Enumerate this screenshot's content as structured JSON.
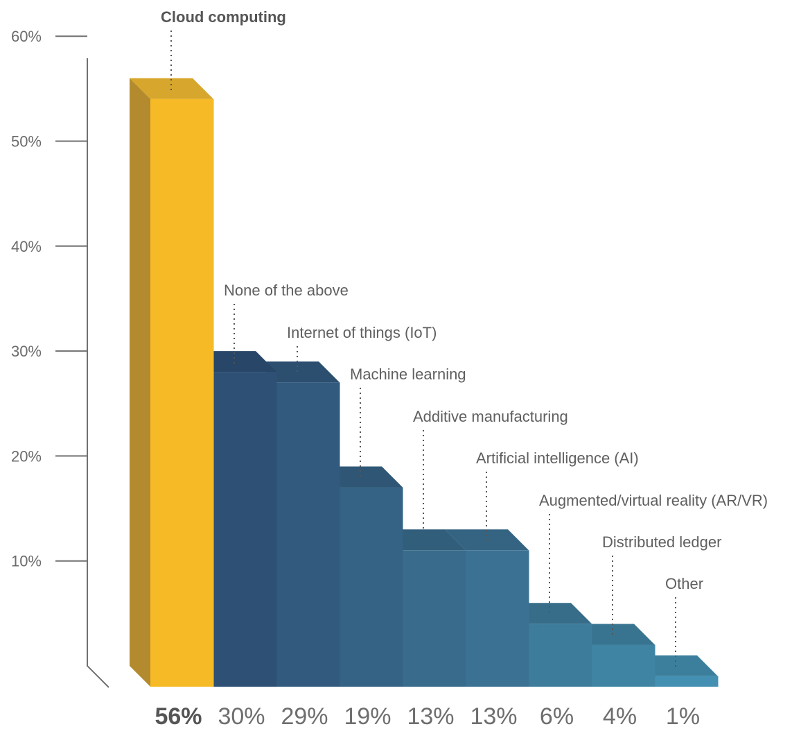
{
  "chart_data": {
    "type": "bar",
    "title": "",
    "xlabel": "",
    "ylabel": "",
    "ylim": [
      0,
      60
    ],
    "yticks": [
      "10%",
      "20%",
      "30%",
      "40%",
      "50%",
      "60%"
    ],
    "ytick_values": [
      10,
      20,
      30,
      40,
      50,
      60
    ],
    "categories": [
      "Cloud computing",
      "None of the above",
      "Internet of things (IoT)",
      "Machine learning",
      "Additive manufacturing",
      "Artificial intelligence (AI)",
      "Augmented/virtual reality (AR/VR)",
      "Distributed ledger",
      "Other"
    ],
    "values": [
      56,
      30,
      29,
      19,
      13,
      13,
      6,
      4,
      1
    ],
    "value_labels": [
      "56%",
      "30%",
      "29%",
      "19%",
      "13%",
      "13%",
      "6%",
      "4%",
      "1%"
    ],
    "highlight_index": 0,
    "style": "3d-stepped",
    "colors": {
      "highlight_front": "#F5BA26",
      "highlight_side": "#B38A2D",
      "highlight_top": "#D7A62C",
      "bars": [
        "#2E5075",
        "#325A7F",
        "#356385",
        "#386B8C",
        "#3B7294",
        "#3E7C9C",
        "#4084A4",
        "#4490B2"
      ],
      "axis": "#707070",
      "leader": "#555555"
    }
  }
}
